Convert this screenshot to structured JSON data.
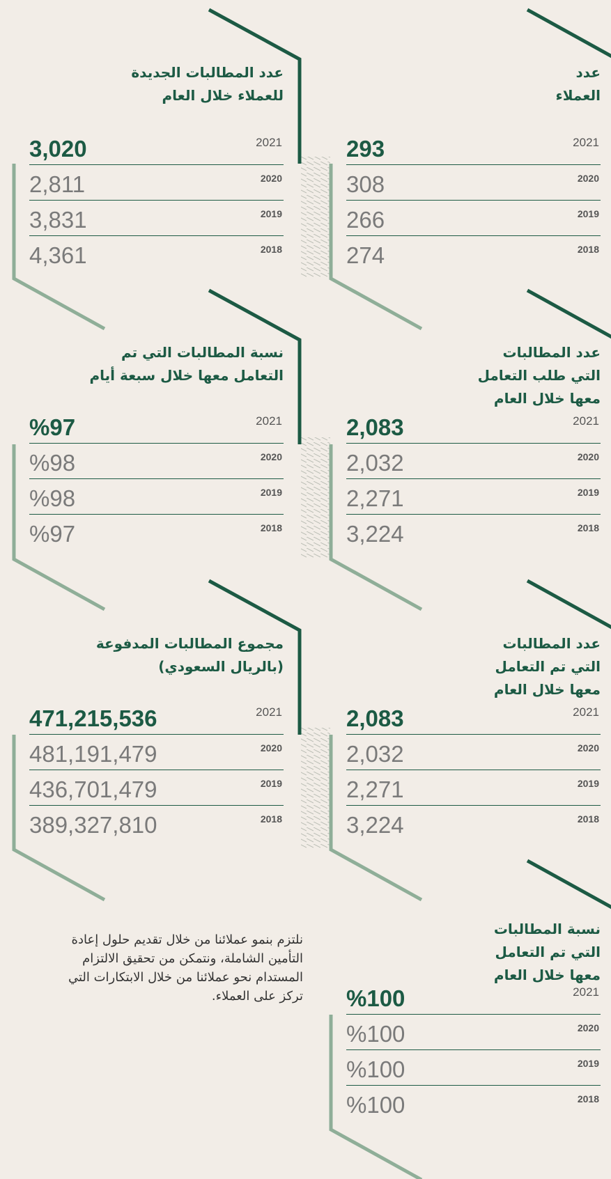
{
  "panels": [
    {
      "title": [
        "عدد",
        "العملاء"
      ],
      "rows": [
        {
          "year": "2021",
          "value": "293"
        },
        {
          "year": "2020",
          "value": "308"
        },
        {
          "year": "2019",
          "value": "266"
        },
        {
          "year": "2018",
          "value": "274"
        }
      ]
    },
    {
      "title": [
        "عدد المطالبات الجديدة",
        "للعملاء خلال العام"
      ],
      "rows": [
        {
          "year": "2021",
          "value": "3,020"
        },
        {
          "year": "2020",
          "value": "2,811"
        },
        {
          "year": "2019",
          "value": "3,831"
        },
        {
          "year": "2018",
          "value": "4,361"
        }
      ]
    },
    {
      "title": [
        "عدد المطالبات",
        "التي طلب التعامل",
        "معها خلال العام"
      ],
      "rows": [
        {
          "year": "2021",
          "value": "2,083"
        },
        {
          "year": "2020",
          "value": "2,032"
        },
        {
          "year": "2019",
          "value": "2,271"
        },
        {
          "year": "2018",
          "value": "3,224"
        }
      ]
    },
    {
      "title": [
        "نسبة المطالبات التي تم",
        "التعامل معها خلال سبعة أيام"
      ],
      "rows": [
        {
          "year": "2021",
          "value": "%97"
        },
        {
          "year": "2020",
          "value": "%98"
        },
        {
          "year": "2019",
          "value": "%98"
        },
        {
          "year": "2018",
          "value": "%97"
        }
      ]
    },
    {
      "title": [
        "عدد المطالبات",
        "التي تم التعامل",
        "معها خلال العام"
      ],
      "rows": [
        {
          "year": "2021",
          "value": "2,083"
        },
        {
          "year": "2020",
          "value": "2,032"
        },
        {
          "year": "2019",
          "value": "2,271"
        },
        {
          "year": "2018",
          "value": "3,224"
        }
      ]
    },
    {
      "title": [
        "مجموع المطالبات المدفوعة",
        "(بالريال السعودي)"
      ],
      "rows": [
        {
          "year": "2021",
          "value": "471,215,536"
        },
        {
          "year": "2020",
          "value": "481,191,479"
        },
        {
          "year": "2019",
          "value": "436,701,479"
        },
        {
          "year": "2018",
          "value": "389,327,810"
        }
      ]
    },
    {
      "title": [
        "نسبة المطالبات",
        "التي تم التعامل",
        "معها خلال العام"
      ],
      "rows": [
        {
          "year": "2021",
          "value": "%100"
        },
        {
          "year": "2020",
          "value": "%100"
        },
        {
          "year": "2019",
          "value": "%100"
        },
        {
          "year": "2018",
          "value": "%100"
        }
      ]
    }
  ],
  "paragraph": [
    "نلتزم بنمو عملائنا من خلال تقديم حلول إعادة",
    "التأمين الشاملة، ونتمكن من تحقيق الالتزام",
    "المستدام نحو عملائنا من خلال الابتكارات التي",
    "تركز على العملاء."
  ]
}
